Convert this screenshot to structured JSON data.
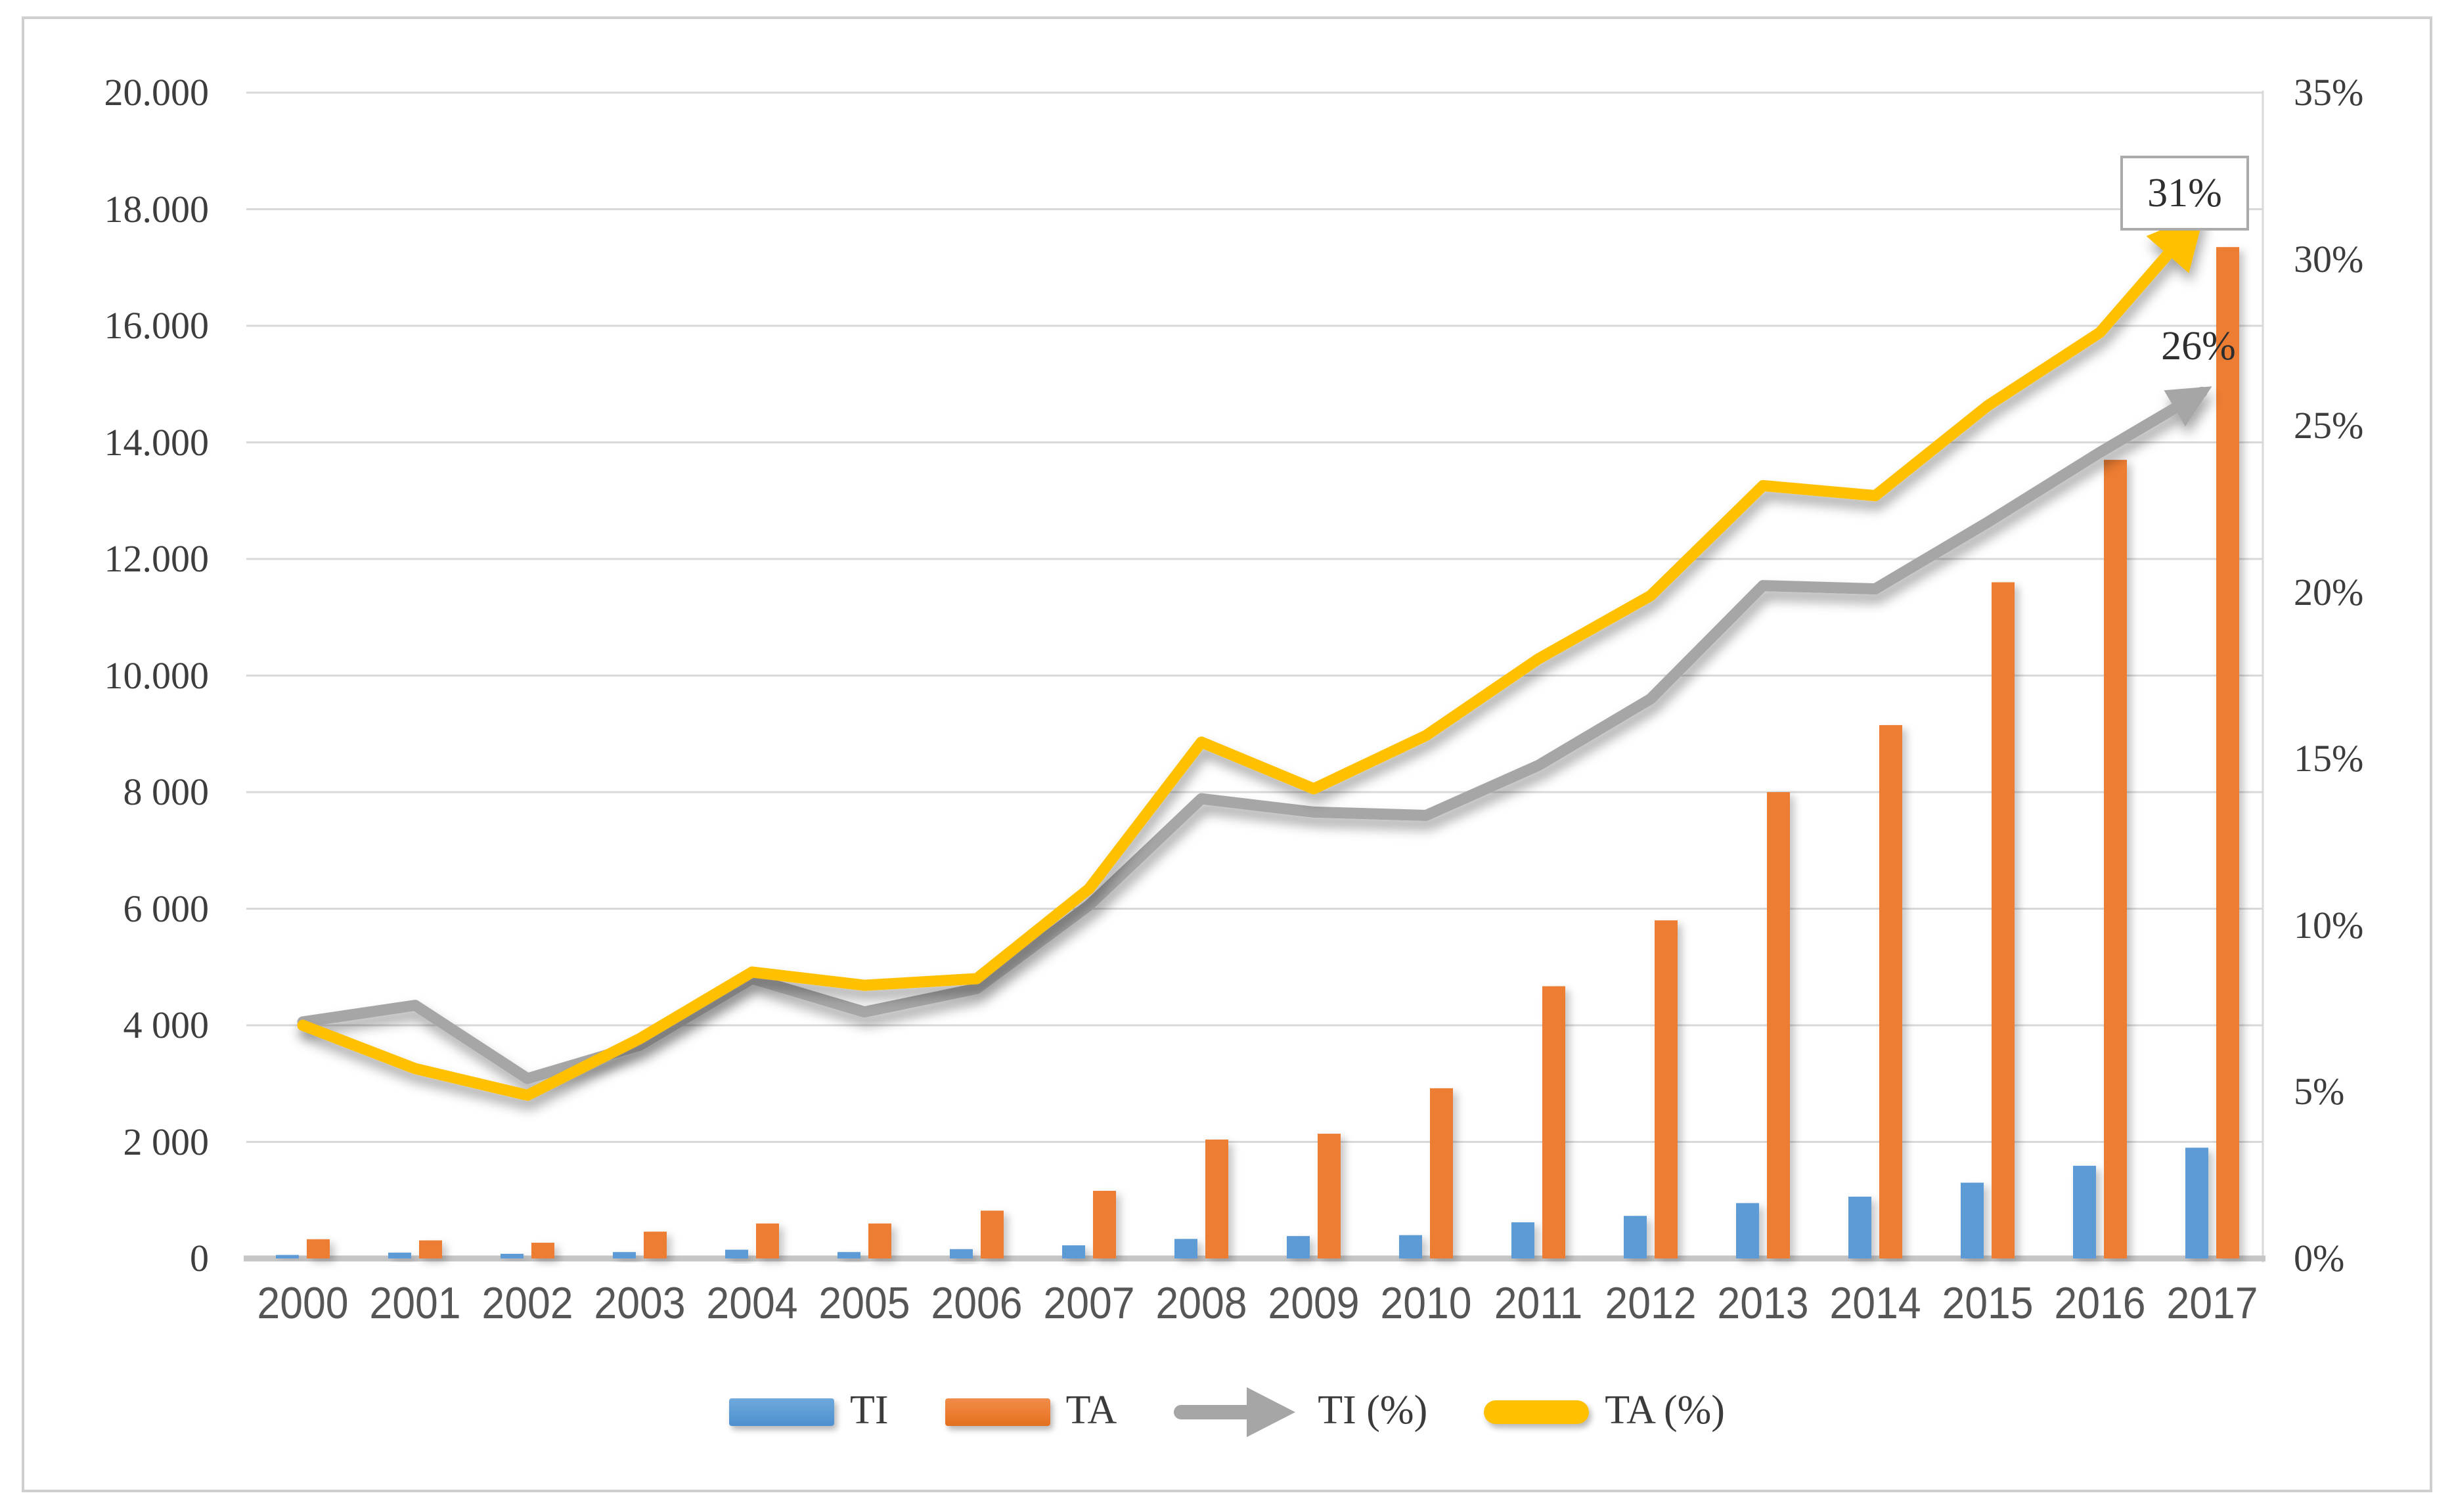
{
  "chart_data": {
    "type": "bar",
    "subtype": "combo-bar-line-dual-axis",
    "title": "",
    "xlabel": "",
    "ylabel_left": "",
    "ylabel_right": "",
    "grid": true,
    "legend_position": "bottom",
    "categories": [
      "2000",
      "2001",
      "2002",
      "2003",
      "2004",
      "2005",
      "2006",
      "2007",
      "2008",
      "2009",
      "2010",
      "2011",
      "2012",
      "2013",
      "2014",
      "2015",
      "2016",
      "2017"
    ],
    "series": [
      {
        "name": "TI",
        "type": "bar",
        "axis": "left",
        "color": "#5B9BD5",
        "values": [
          60,
          100,
          80,
          110,
          150,
          110,
          160,
          225,
          335,
          385,
          400,
          620,
          730,
          950,
          1060,
          1300,
          1590,
          1900
        ]
      },
      {
        "name": "TA",
        "type": "bar",
        "axis": "left",
        "color": "#ED7D31",
        "values": [
          330,
          310,
          270,
          460,
          600,
          600,
          820,
          1160,
          2040,
          2140,
          2920,
          4670,
          5800,
          8000,
          9150,
          11600,
          13700,
          17350
        ]
      },
      {
        "name": "TI (%)",
        "type": "line",
        "axis": "right",
        "color": "#A6A6A6",
        "arrow_end": true,
        "values_percent": [
          7.1,
          7.6,
          5.4,
          6.4,
          8.4,
          7.4,
          8.1,
          10.6,
          13.8,
          13.4,
          13.3,
          14.8,
          16.8,
          20.2,
          20.1,
          22.1,
          24.2,
          26
        ]
      },
      {
        "name": "TA (%)",
        "type": "line",
        "axis": "right",
        "color": "#FFC000",
        "arrow_end": true,
        "values_percent": [
          7.0,
          5.7,
          4.9,
          6.6,
          8.6,
          8.2,
          8.4,
          11.1,
          15.5,
          14.1,
          15.7,
          18.0,
          19.9,
          23.2,
          22.9,
          25.6,
          27.8,
          31
        ]
      }
    ],
    "y_axis_left": {
      "min": 0,
      "max": 20000,
      "step": 2000,
      "labels": [
        "20.000",
        "18.000",
        "16.000",
        "14.000",
        "12.000",
        "10.000",
        "8 000",
        "6 000",
        "4 000",
        "2 000",
        "0"
      ]
    },
    "y_axis_right": {
      "min": "0%",
      "max": "35%",
      "step": "5%",
      "labels": [
        "35%",
        "30%",
        "25%",
        "20%",
        "15%",
        "10%",
        "5%",
        "0%"
      ]
    },
    "annotations": [
      {
        "text": "31%",
        "series": "TA (%)",
        "category": "2017",
        "boxed": true
      },
      {
        "text": "26%",
        "series": "TI (%)",
        "category": "2017",
        "boxed": false
      }
    ],
    "legend": [
      {
        "label": "TI",
        "marker": "bar-swatch",
        "color": "#5B9BD5"
      },
      {
        "label": "TA",
        "marker": "bar-swatch",
        "color": "#ED7D31"
      },
      {
        "label": "TI (%)",
        "marker": "arrow",
        "color": "#A6A6A6"
      },
      {
        "label": "TA (%)",
        "marker": "thick-line-pill",
        "color": "#FFC000"
      }
    ],
    "colors": {
      "gridline": "#D9D9D9",
      "baseline": "#C6C6C6",
      "tick_text": "#3D3D3D",
      "year_text": "#565656",
      "frame_border": "#CFCFCF",
      "annotation_border": "#ABABAB"
    }
  }
}
